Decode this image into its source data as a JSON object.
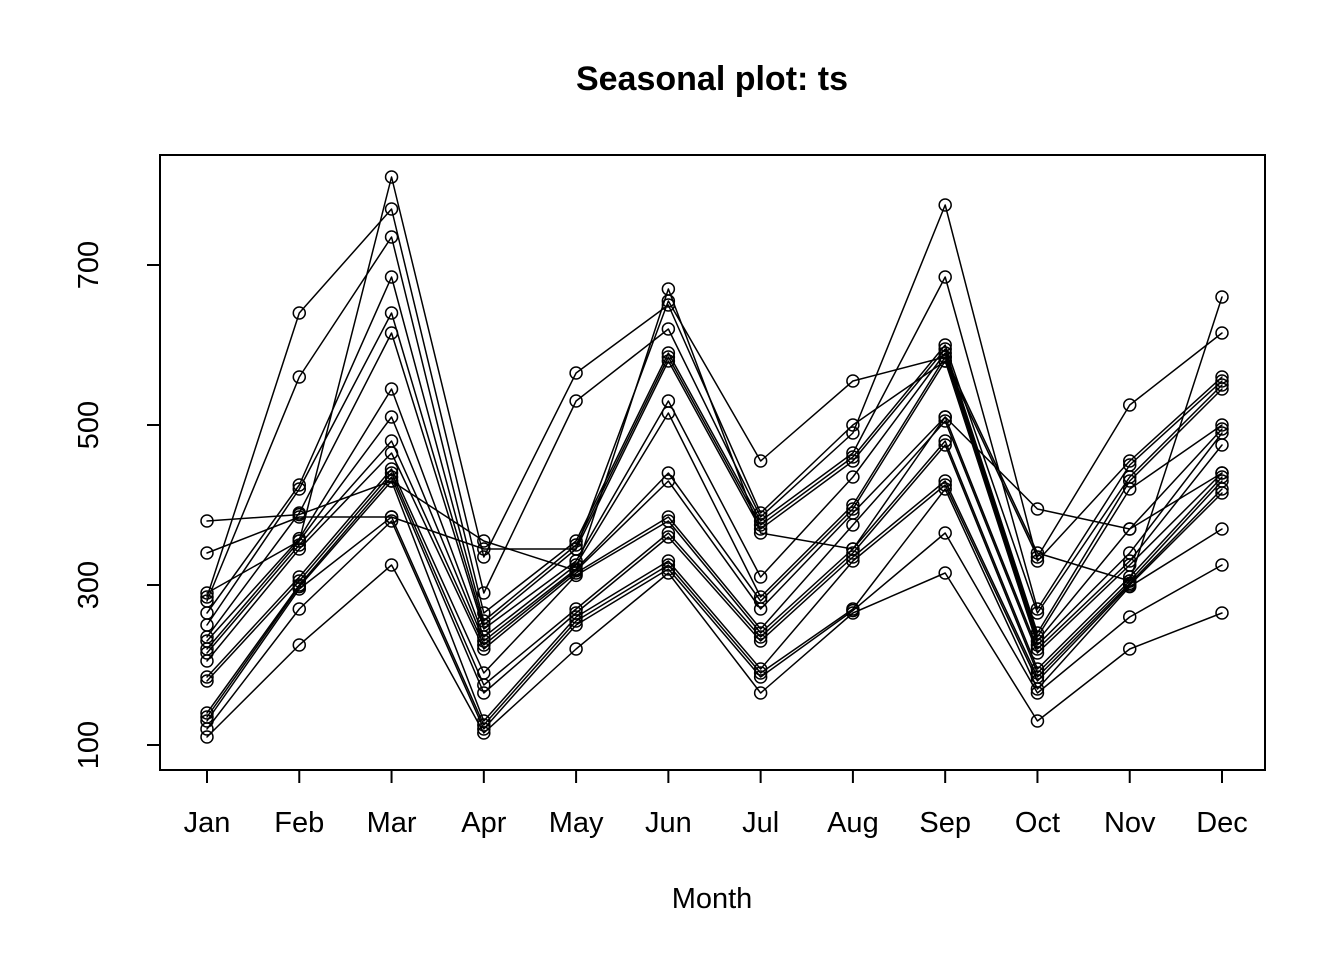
{
  "chart_data": {
    "type": "line",
    "title": "Seasonal plot: ts",
    "xlabel": "Month",
    "ylabel": "",
    "x": [
      "Jan",
      "Feb",
      "Mar",
      "Apr",
      "May",
      "Jun",
      "Jul",
      "Aug",
      "Sep",
      "Oct",
      "Nov",
      "Dec"
    ],
    "y_ticks": [
      100,
      300,
      500,
      700
    ],
    "ylim": [
      100,
      840
    ],
    "grid": false,
    "legend": "none",
    "marker": "open-circle",
    "line_color": "#000000",
    "series": [
      {
        "values": [
          110,
          225,
          325,
          115,
          220,
          315,
          165,
          265,
          315,
          130,
          220,
          265
        ]
      },
      {
        "values": [
          120,
          270,
          380,
          120,
          250,
          320,
          185,
          268,
          365,
          165,
          260,
          325
        ]
      },
      {
        "values": [
          130,
          295,
          385,
          125,
          255,
          325,
          190,
          270,
          420,
          170,
          298,
          370
        ]
      },
      {
        "values": [
          135,
          298,
          430,
          130,
          260,
          330,
          195,
          330,
          425,
          180,
          300,
          415
        ]
      },
      {
        "values": [
          140,
          300,
          435,
          165,
          265,
          360,
          230,
          335,
          430,
          185,
          302,
          420
        ]
      },
      {
        "values": [
          180,
          305,
          440,
          175,
          270,
          365,
          235,
          340,
          475,
          190,
          305,
          430
        ]
      },
      {
        "values": [
          185,
          310,
          445,
          190,
          312,
          380,
          240,
          345,
          480,
          195,
          310,
          435
        ]
      },
      {
        "values": [
          205,
          345,
          465,
          220,
          315,
          385,
          245,
          375,
          505,
          215,
          325,
          440
        ]
      },
      {
        "values": [
          215,
          350,
          480,
          225,
          318,
          430,
          270,
          390,
          510,
          220,
          330,
          475
        ]
      },
      {
        "values": [
          220,
          355,
          510,
          230,
          320,
          440,
          280,
          395,
          580,
          225,
          340,
          490
        ]
      },
      {
        "values": [
          230,
          358,
          545,
          235,
          325,
          515,
          285,
          400,
          585,
          230,
          370,
          495
        ]
      },
      {
        "values": [
          235,
          390,
          615,
          245,
          330,
          530,
          310,
          435,
          590,
          235,
          420,
          500
        ]
      },
      {
        "values": [
          250,
          420,
          640,
          250,
          345,
          580,
          370,
          455,
          595,
          240,
          430,
          545
        ]
      },
      {
        "values": [
          265,
          425,
          685,
          255,
          350,
          585,
          375,
          460,
          600,
          265,
          435,
          550
        ]
      },
      {
        "values": [
          280,
          560,
          735,
          265,
          355,
          590,
          380,
          465,
          685,
          270,
          450,
          555
        ]
      },
      {
        "values": [
          285,
          640,
          770,
          290,
          530,
          620,
          385,
          490,
          775,
          330,
          455,
          560
        ]
      },
      {
        "values": [
          290,
          355,
          810,
          335,
          565,
          650,
          390,
          500,
          580,
          335,
          525,
          615
        ]
      },
      {
        "values": [
          340,
          385,
          385,
          345,
          345,
          655,
          455,
          555,
          585,
          340,
          305,
          660
        ]
      },
      {
        "values": [
          380,
          388,
          430,
          355,
          318,
          670,
          365,
          345,
          510,
          395,
          370,
          440
        ]
      }
    ]
  }
}
